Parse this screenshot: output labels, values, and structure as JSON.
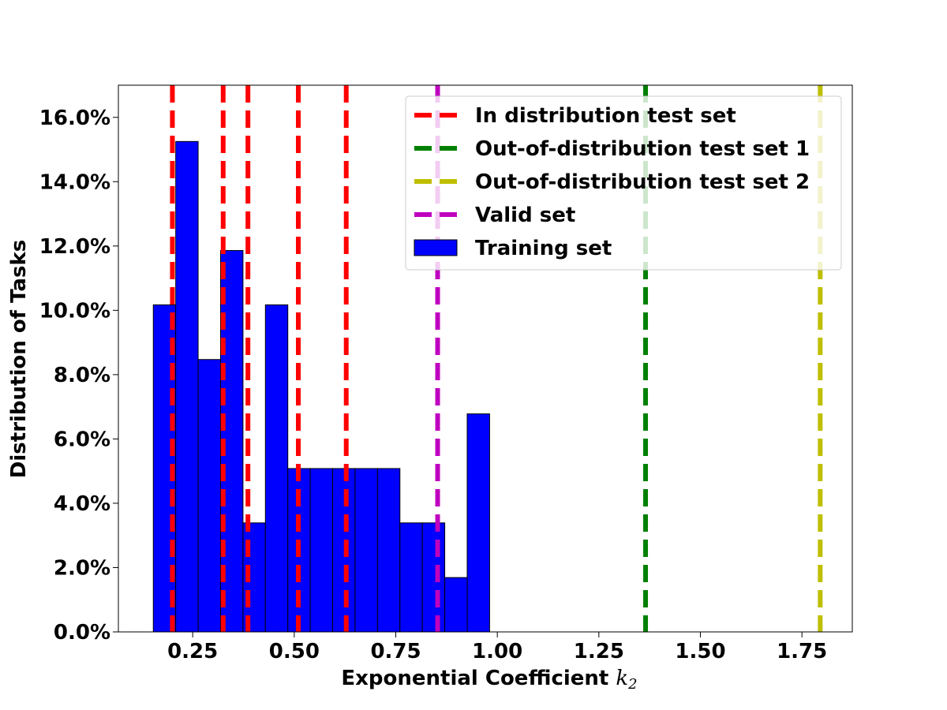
{
  "chart_data": {
    "type": "bar",
    "title": "",
    "xlabel": "Exponential Coefficient",
    "xlabel_math": "k",
    "xlabel_math_sub": "2",
    "ylabel": "Distribution of Tasks",
    "xlim": [
      0.067,
      1.874
    ],
    "ylim": [
      0.0,
      0.17
    ],
    "x_ticks": [
      0.25,
      0.5,
      0.75,
      1.0,
      1.25,
      1.5,
      1.75
    ],
    "x_tick_labels": [
      "0.25",
      "0.50",
      "0.75",
      "1.00",
      "1.25",
      "1.50",
      "1.75"
    ],
    "y_ticks": [
      0.0,
      0.02,
      0.04,
      0.06,
      0.08,
      0.1,
      0.12,
      0.14,
      0.16
    ],
    "y_tick_labels": [
      "0.0%",
      "2.0%",
      "4.0%",
      "6.0%",
      "8.0%",
      "10.0%",
      "12.0%",
      "14.0%",
      "16.0%"
    ],
    "grid": false,
    "legend_position": "top-right",
    "histogram": {
      "name": "Training set",
      "color": "#0000ff",
      "edge_color": "#000000",
      "bin_edges": [
        0.153,
        0.2082,
        0.2634,
        0.3186,
        0.3738,
        0.429,
        0.4842,
        0.5394,
        0.5946,
        0.6498,
        0.705,
        0.7602,
        0.8154,
        0.8706,
        0.9258,
        0.981
      ],
      "values": [
        0.1017,
        0.1525,
        0.0847,
        0.1186,
        0.0339,
        0.1017,
        0.0508,
        0.0508,
        0.0508,
        0.0508,
        0.0508,
        0.0339,
        0.0339,
        0.0169,
        0.0678
      ]
    },
    "vertical_lines": [
      {
        "name": "In distribution test set",
        "color": "#ff0000",
        "x": [
          0.2,
          0.325,
          0.386,
          0.51,
          0.628
        ]
      },
      {
        "name": "Out-of-distribution test set 1",
        "color": "#008000",
        "x": [
          1.365
        ]
      },
      {
        "name": "Out-of-distribution test set 2",
        "color": "#bfbf00",
        "x": [
          1.795
        ]
      },
      {
        "name": "Valid set",
        "color": "#bf00bf",
        "x": [
          0.853
        ]
      }
    ],
    "legend": [
      {
        "label": "In distribution test set",
        "color": "#ff0000",
        "kind": "dashed-line"
      },
      {
        "label": "Out-of-distribution test set 1",
        "color": "#008000",
        "kind": "dashed-line"
      },
      {
        "label": "Out-of-distribution test set 2",
        "color": "#bfbf00",
        "kind": "dashed-line"
      },
      {
        "label": "Valid set",
        "color": "#bf00bf",
        "kind": "dashed-line"
      },
      {
        "label": "Training set",
        "color": "#0000ff",
        "kind": "patch"
      }
    ]
  }
}
